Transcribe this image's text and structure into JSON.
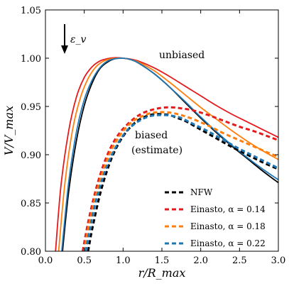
{
  "chart_data": {
    "type": "line",
    "title": "",
    "xlabel": "r/R_max",
    "ylabel": "V/V_max",
    "xlim": [
      0.0,
      3.0
    ],
    "ylim": [
      0.8,
      1.05
    ],
    "x_ticks": [
      "0.0",
      "0.5",
      "1.0",
      "1.5",
      "2.0",
      "2.5",
      "3.0"
    ],
    "y_ticks": [
      "0.80",
      "0.85",
      "0.90",
      "0.95",
      "1.00",
      "1.05"
    ],
    "annotations": {
      "arrow_label": "ε_v",
      "unbiased": "unbiased",
      "biased_line1": "biased",
      "biased_line2": "(estimate)"
    },
    "legend": {
      "position": "lower-right",
      "entries": [
        {
          "label": "NFW",
          "color": "#000000"
        },
        {
          "label": "Einasto, α = 0.14",
          "color": "#e41a1c"
        },
        {
          "label": "Einasto, α = 0.18",
          "color": "#ff7f0e"
        },
        {
          "label": "Einasto, α = 0.22",
          "color": "#1f77b4"
        }
      ]
    },
    "series": [
      {
        "name": "NFW",
        "style": "solid",
        "color": "#000000",
        "x": [
          0.22,
          0.3,
          0.4,
          0.5,
          0.6,
          0.7,
          0.8,
          0.9,
          1.0,
          1.1,
          1.2,
          1.4,
          1.6,
          1.8,
          2.0,
          2.2,
          2.4,
          2.6,
          2.8,
          3.0
        ],
        "y": [
          0.8,
          0.862,
          0.915,
          0.951,
          0.974,
          0.989,
          0.996,
          0.9995,
          1.0,
          0.9985,
          0.995,
          0.984,
          0.97,
          0.954,
          0.938,
          0.923,
          0.909,
          0.896,
          0.883,
          0.871
        ]
      },
      {
        "name": "Einasto, α = 0.14",
        "style": "solid",
        "color": "#e41a1c",
        "x": [
          0.13,
          0.2,
          0.3,
          0.4,
          0.5,
          0.6,
          0.7,
          0.8,
          0.9,
          1.0,
          1.1,
          1.2,
          1.4,
          1.6,
          1.8,
          2.0,
          2.2,
          2.4,
          2.6,
          2.8,
          3.0
        ],
        "y": [
          0.8,
          0.868,
          0.925,
          0.96,
          0.98,
          0.991,
          0.997,
          0.9995,
          1.0005,
          1.0,
          0.999,
          0.997,
          0.99,
          0.981,
          0.971,
          0.961,
          0.951,
          0.942,
          0.934,
          0.926,
          0.918
        ]
      },
      {
        "name": "Einasto, α = 0.18",
        "style": "solid",
        "color": "#ff7f0e",
        "x": [
          0.17,
          0.25,
          0.35,
          0.45,
          0.55,
          0.65,
          0.75,
          0.85,
          0.95,
          1.0,
          1.1,
          1.2,
          1.4,
          1.6,
          1.8,
          2.0,
          2.2,
          2.4,
          2.6,
          2.8,
          3.0
        ],
        "y": [
          0.8,
          0.87,
          0.926,
          0.959,
          0.979,
          0.991,
          0.997,
          0.9995,
          1.0,
          1.0,
          0.9985,
          0.996,
          0.987,
          0.975,
          0.962,
          0.949,
          0.937,
          0.925,
          0.914,
          0.904,
          0.895
        ]
      },
      {
        "name": "Einasto, α = 0.22",
        "style": "solid",
        "color": "#1f77b4",
        "x": [
          0.21,
          0.3,
          0.4,
          0.5,
          0.6,
          0.7,
          0.8,
          0.9,
          1.0,
          1.1,
          1.2,
          1.4,
          1.6,
          1.8,
          2.0,
          2.2,
          2.4,
          2.6,
          2.8,
          3.0
        ],
        "y": [
          0.8,
          0.872,
          0.924,
          0.957,
          0.977,
          0.99,
          0.997,
          0.9995,
          1.0,
          0.9985,
          0.995,
          0.984,
          0.97,
          0.955,
          0.939,
          0.924,
          0.91,
          0.897,
          0.885,
          0.874
        ]
      },
      {
        "name": "NFW (biased)",
        "style": "dashed",
        "color": "#000000",
        "x": [
          0.55,
          0.6,
          0.7,
          0.8,
          0.9,
          1.0,
          1.1,
          1.2,
          1.3,
          1.4,
          1.5,
          1.6,
          1.7,
          1.8,
          2.0,
          2.2,
          2.4,
          2.6,
          2.8,
          3.0
        ],
        "y": [
          0.8,
          0.822,
          0.858,
          0.885,
          0.905,
          0.919,
          0.929,
          0.936,
          0.94,
          0.942,
          0.942,
          0.941,
          0.938,
          0.935,
          0.926,
          0.917,
          0.908,
          0.9,
          0.892,
          0.885
        ]
      },
      {
        "name": "Einasto, α = 0.14 (biased)",
        "style": "dashed",
        "color": "#e41a1c",
        "x": [
          0.48,
          0.55,
          0.65,
          0.75,
          0.85,
          0.95,
          1.05,
          1.15,
          1.25,
          1.35,
          1.45,
          1.55,
          1.65,
          1.75,
          1.9,
          2.1,
          2.3,
          2.5,
          2.7,
          2.9,
          3.0
        ],
        "y": [
          0.8,
          0.83,
          0.864,
          0.89,
          0.909,
          0.922,
          0.931,
          0.938,
          0.943,
          0.946,
          0.948,
          0.949,
          0.949,
          0.948,
          0.946,
          0.941,
          0.935,
          0.929,
          0.924,
          0.918,
          0.915
        ]
      },
      {
        "name": "Einasto, α = 0.18 (biased)",
        "style": "dashed",
        "color": "#ff7f0e",
        "x": [
          0.5,
          0.55,
          0.65,
          0.75,
          0.85,
          0.95,
          1.05,
          1.15,
          1.25,
          1.35,
          1.45,
          1.55,
          1.65,
          1.75,
          1.9,
          2.1,
          2.3,
          2.5,
          2.7,
          2.9,
          3.0
        ],
        "y": [
          0.8,
          0.823,
          0.858,
          0.885,
          0.905,
          0.919,
          0.929,
          0.936,
          0.94,
          0.943,
          0.944,
          0.944,
          0.943,
          0.941,
          0.937,
          0.93,
          0.922,
          0.915,
          0.908,
          0.901,
          0.898
        ]
      },
      {
        "name": "Einasto, α = 0.22 (biased)",
        "style": "dashed",
        "color": "#1f77b4",
        "x": [
          0.52,
          0.57,
          0.65,
          0.75,
          0.85,
          0.95,
          1.05,
          1.15,
          1.25,
          1.35,
          1.45,
          1.55,
          1.65,
          1.75,
          1.9,
          2.1,
          2.3,
          2.5,
          2.7,
          2.9,
          3.0
        ],
        "y": [
          0.8,
          0.822,
          0.852,
          0.879,
          0.899,
          0.914,
          0.925,
          0.932,
          0.937,
          0.94,
          0.941,
          0.941,
          0.94,
          0.938,
          0.932,
          0.924,
          0.915,
          0.906,
          0.898,
          0.89,
          0.886
        ]
      }
    ]
  }
}
